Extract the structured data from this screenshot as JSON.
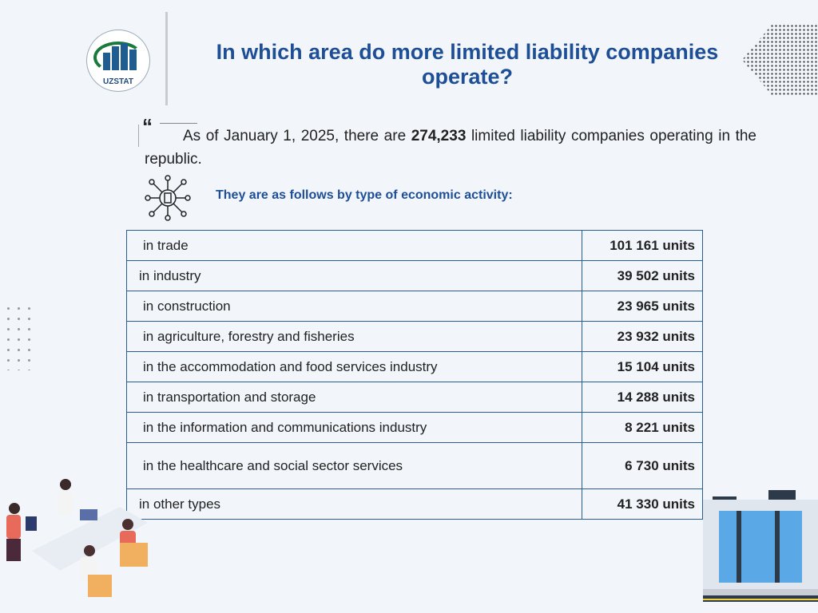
{
  "logo": {
    "text": "UZSTAT"
  },
  "title": "In which area do more limited liability companies operate?",
  "intro": {
    "prefix": "As of January 1, 2025, there are ",
    "highlight": "274,233",
    "suffix": " limited liability companies operating in the republic."
  },
  "subtitle": "They are as follows by type of economic activity:",
  "table": [
    {
      "label": "in trade",
      "value": "101 161 units"
    },
    {
      "label": "in industry",
      "value": "39 502 units"
    },
    {
      "label": "in construction",
      "value": "23 965 units"
    },
    {
      "label": "in agriculture, forestry and fisheries",
      "value": "23 932 units"
    },
    {
      "label": "in the accommodation and food services industry",
      "value": "15 104 units"
    },
    {
      "label": "in transportation and storage",
      "value": "14 288 units"
    },
    {
      "label": "in the information and communications industry",
      "value": "8 221 units"
    },
    {
      "label": "in the healthcare and social sector services",
      "value": "6 730 units"
    },
    {
      "label": "in other types",
      "value": "41 330 units"
    }
  ]
}
